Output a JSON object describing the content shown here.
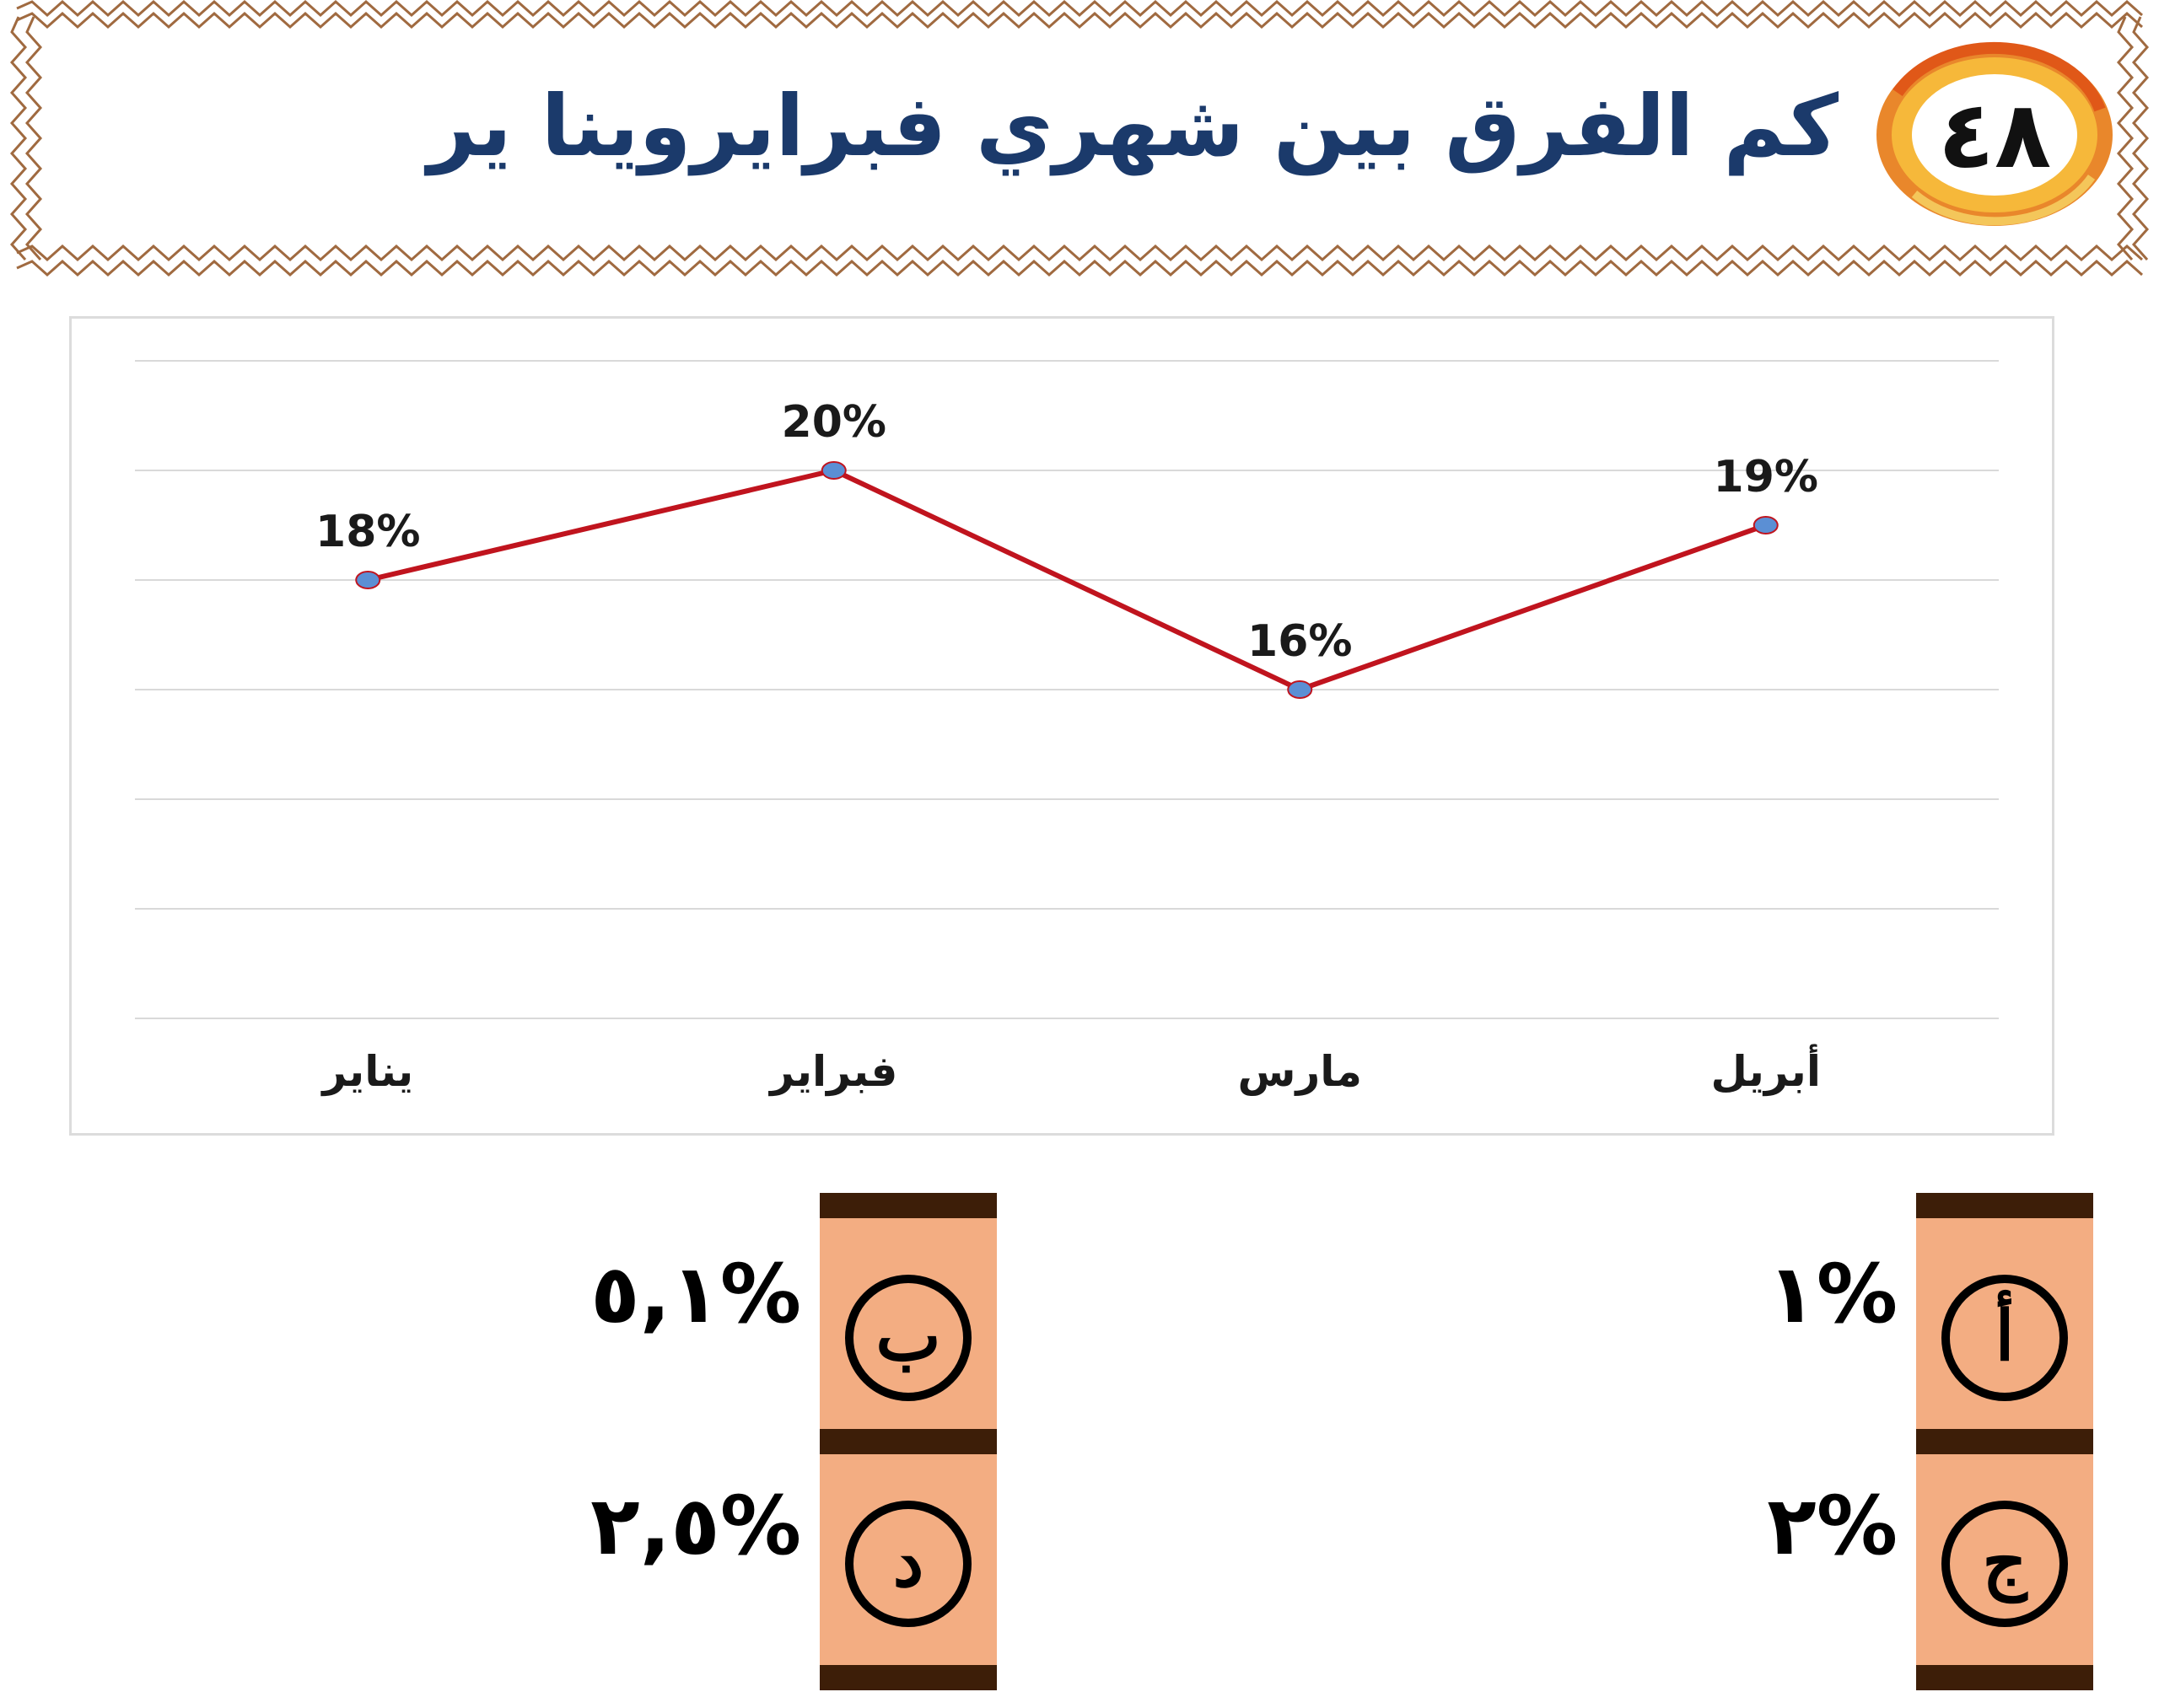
{
  "question": {
    "number": "٤٨",
    "title": "كم الفرق بين شهري فبرايروينا ير"
  },
  "chart_data": {
    "type": "line",
    "categories": [
      "يناير",
      "فبراير",
      "مارس",
      "أبريل"
    ],
    "values": [
      18,
      20,
      16,
      19
    ],
    "data_labels": [
      "18%",
      "20%",
      "16%",
      "19%"
    ],
    "title": "",
    "xlabel": "",
    "ylabel": "",
    "ylim": [
      10,
      22
    ],
    "grid": true,
    "legend": "none",
    "line_color": "#c0141e",
    "marker_color": "#5b8fd4"
  },
  "options": [
    {
      "letter": "أ",
      "value": "%١"
    },
    {
      "letter": "ب",
      "value": "%٥,١"
    },
    {
      "letter": "ج",
      "value": "%٢"
    },
    {
      "letter": "د",
      "value": "%٢,٥"
    }
  ],
  "colors": {
    "title_text": "#1b3a6b",
    "badge_ring_outer": "#f0a52a",
    "badge_ring_inner": "#e8601c",
    "strip_fill": "#f3ad82",
    "strip_bar": "#3d1e08",
    "frame_zigzag": "#a06a40"
  }
}
